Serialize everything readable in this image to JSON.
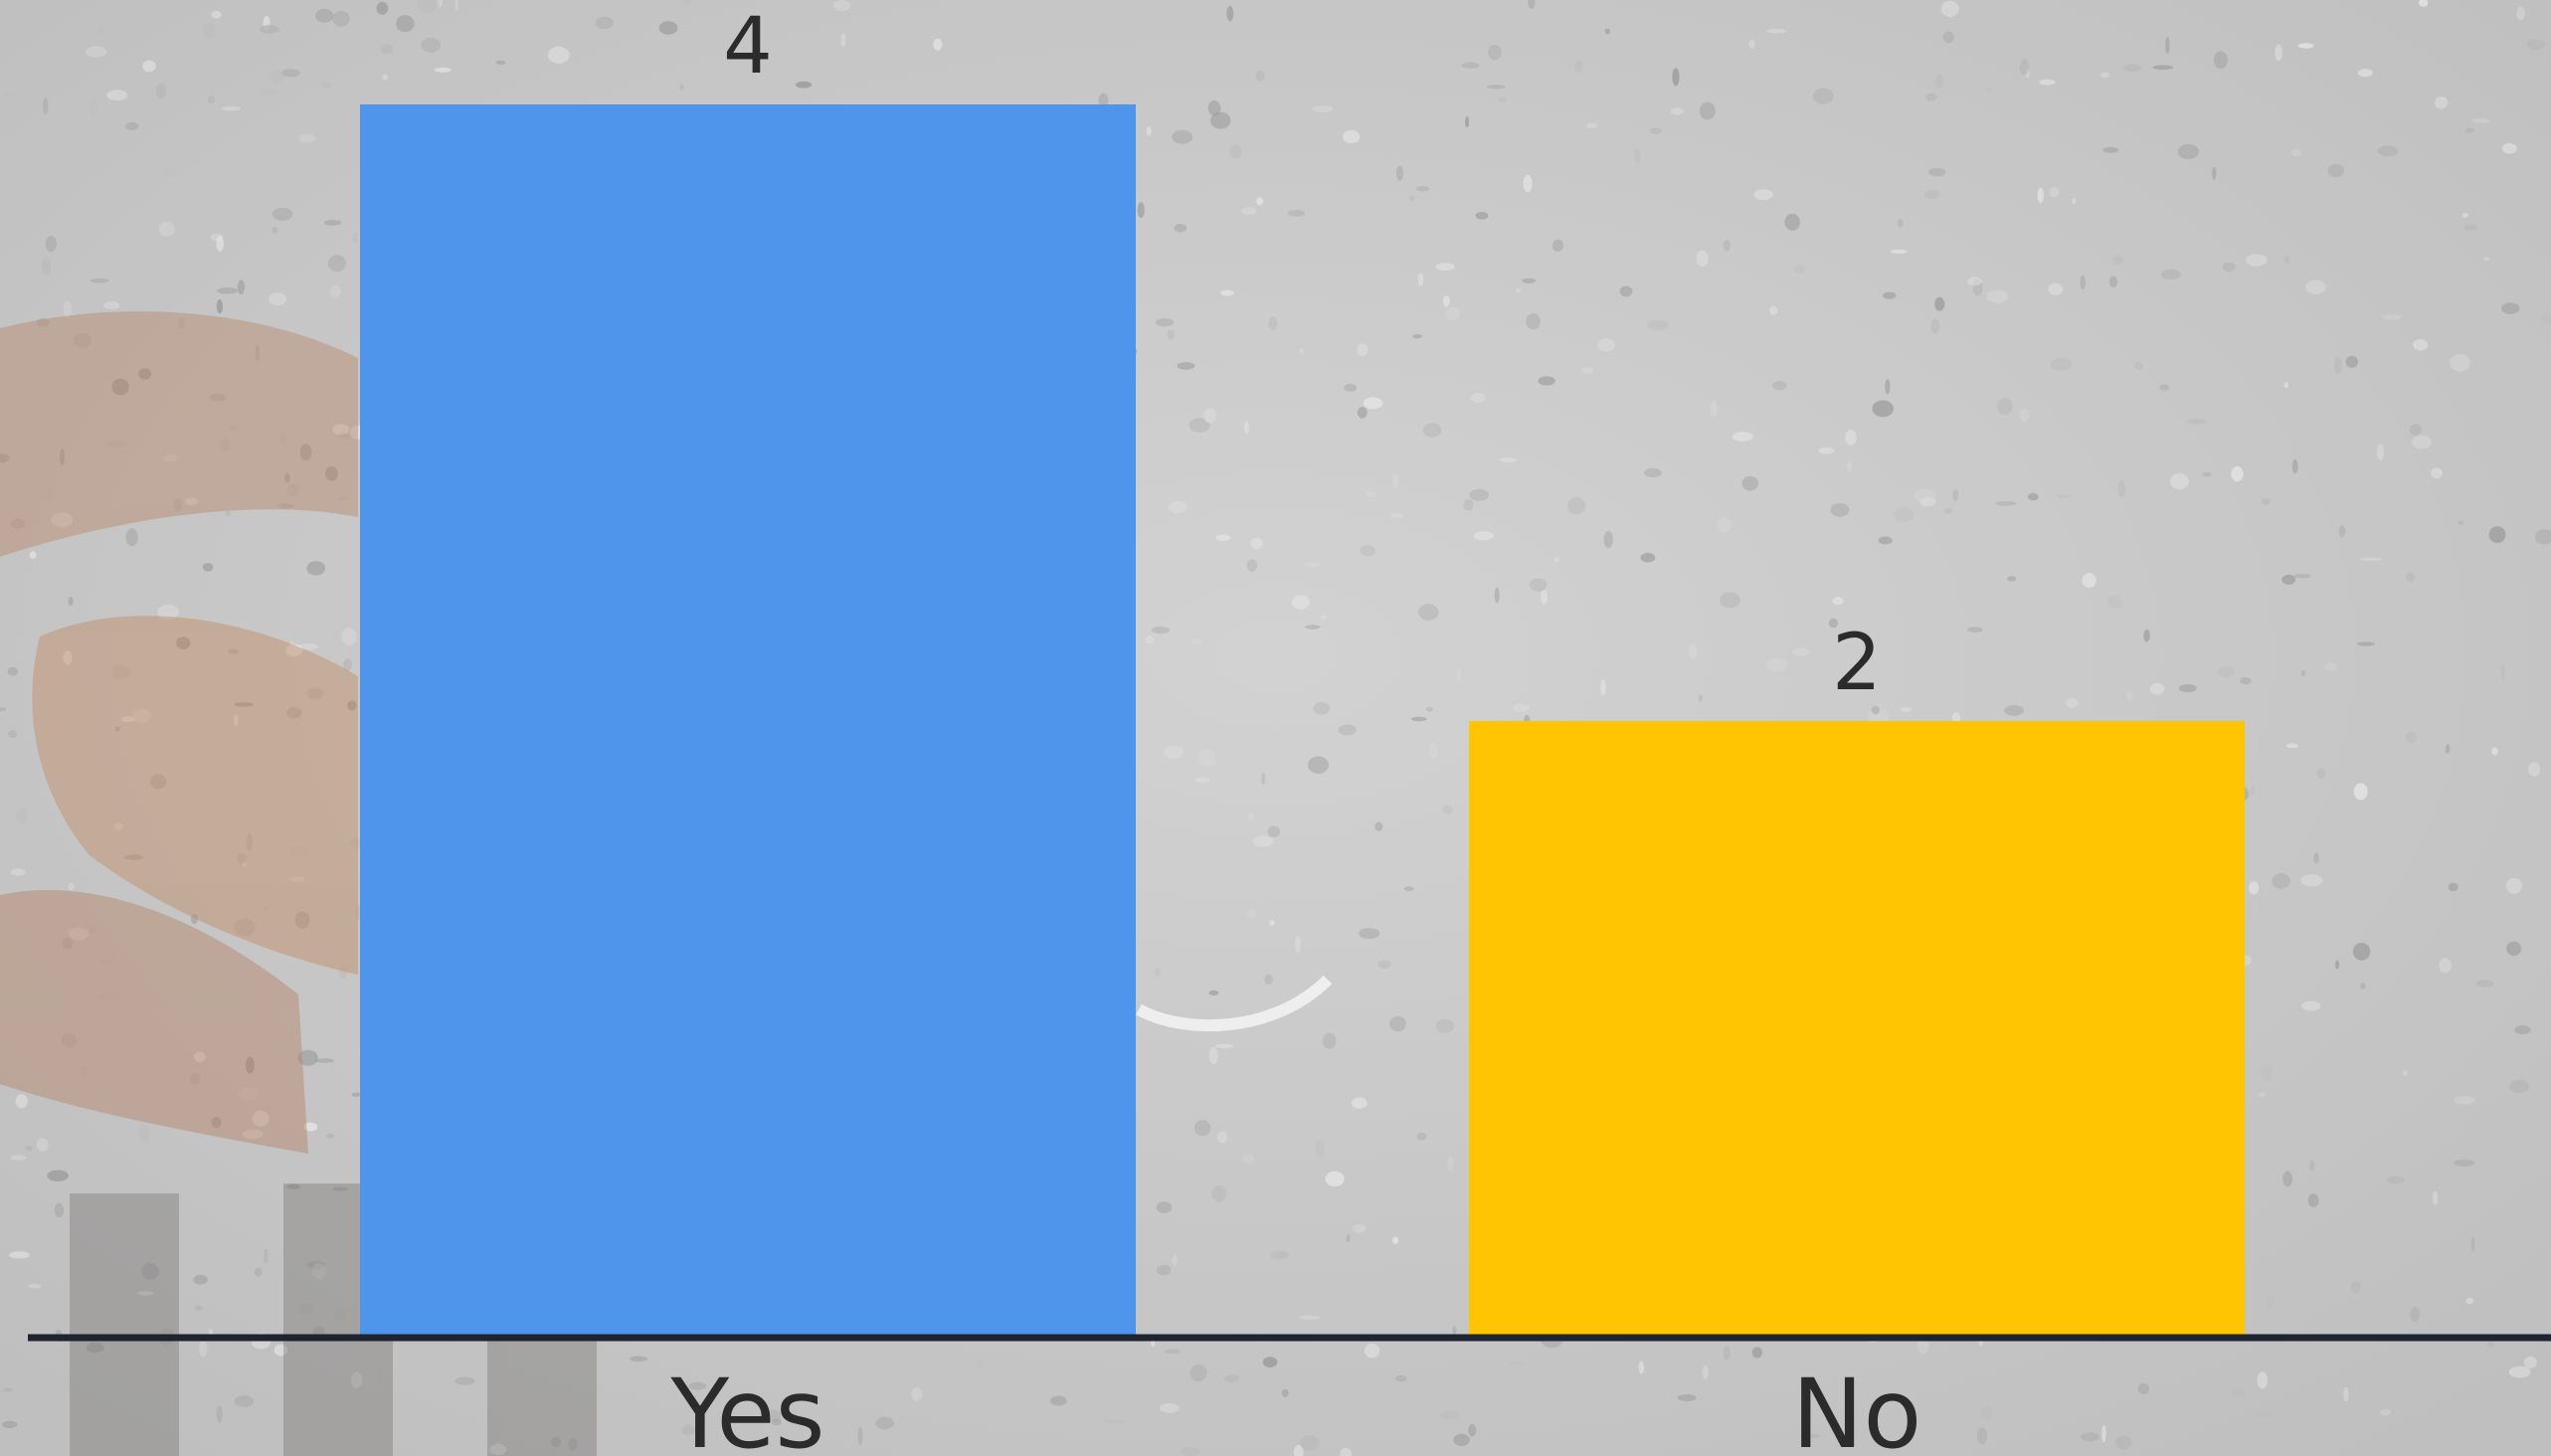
{
  "chart_data": {
    "type": "bar",
    "categories": [
      "Yes",
      "No"
    ],
    "values": [
      4,
      2
    ],
    "data_labels": [
      "4",
      "2"
    ],
    "bar_colors": [
      "#4f95ec",
      "#ffc402"
    ],
    "ylim": [
      0,
      4
    ],
    "grid": false,
    "legend": "none",
    "title": "",
    "xlabel": "",
    "ylabel": ""
  },
  "colors": {
    "axis_line": "#1f2430",
    "text": "#2b2b2b"
  }
}
